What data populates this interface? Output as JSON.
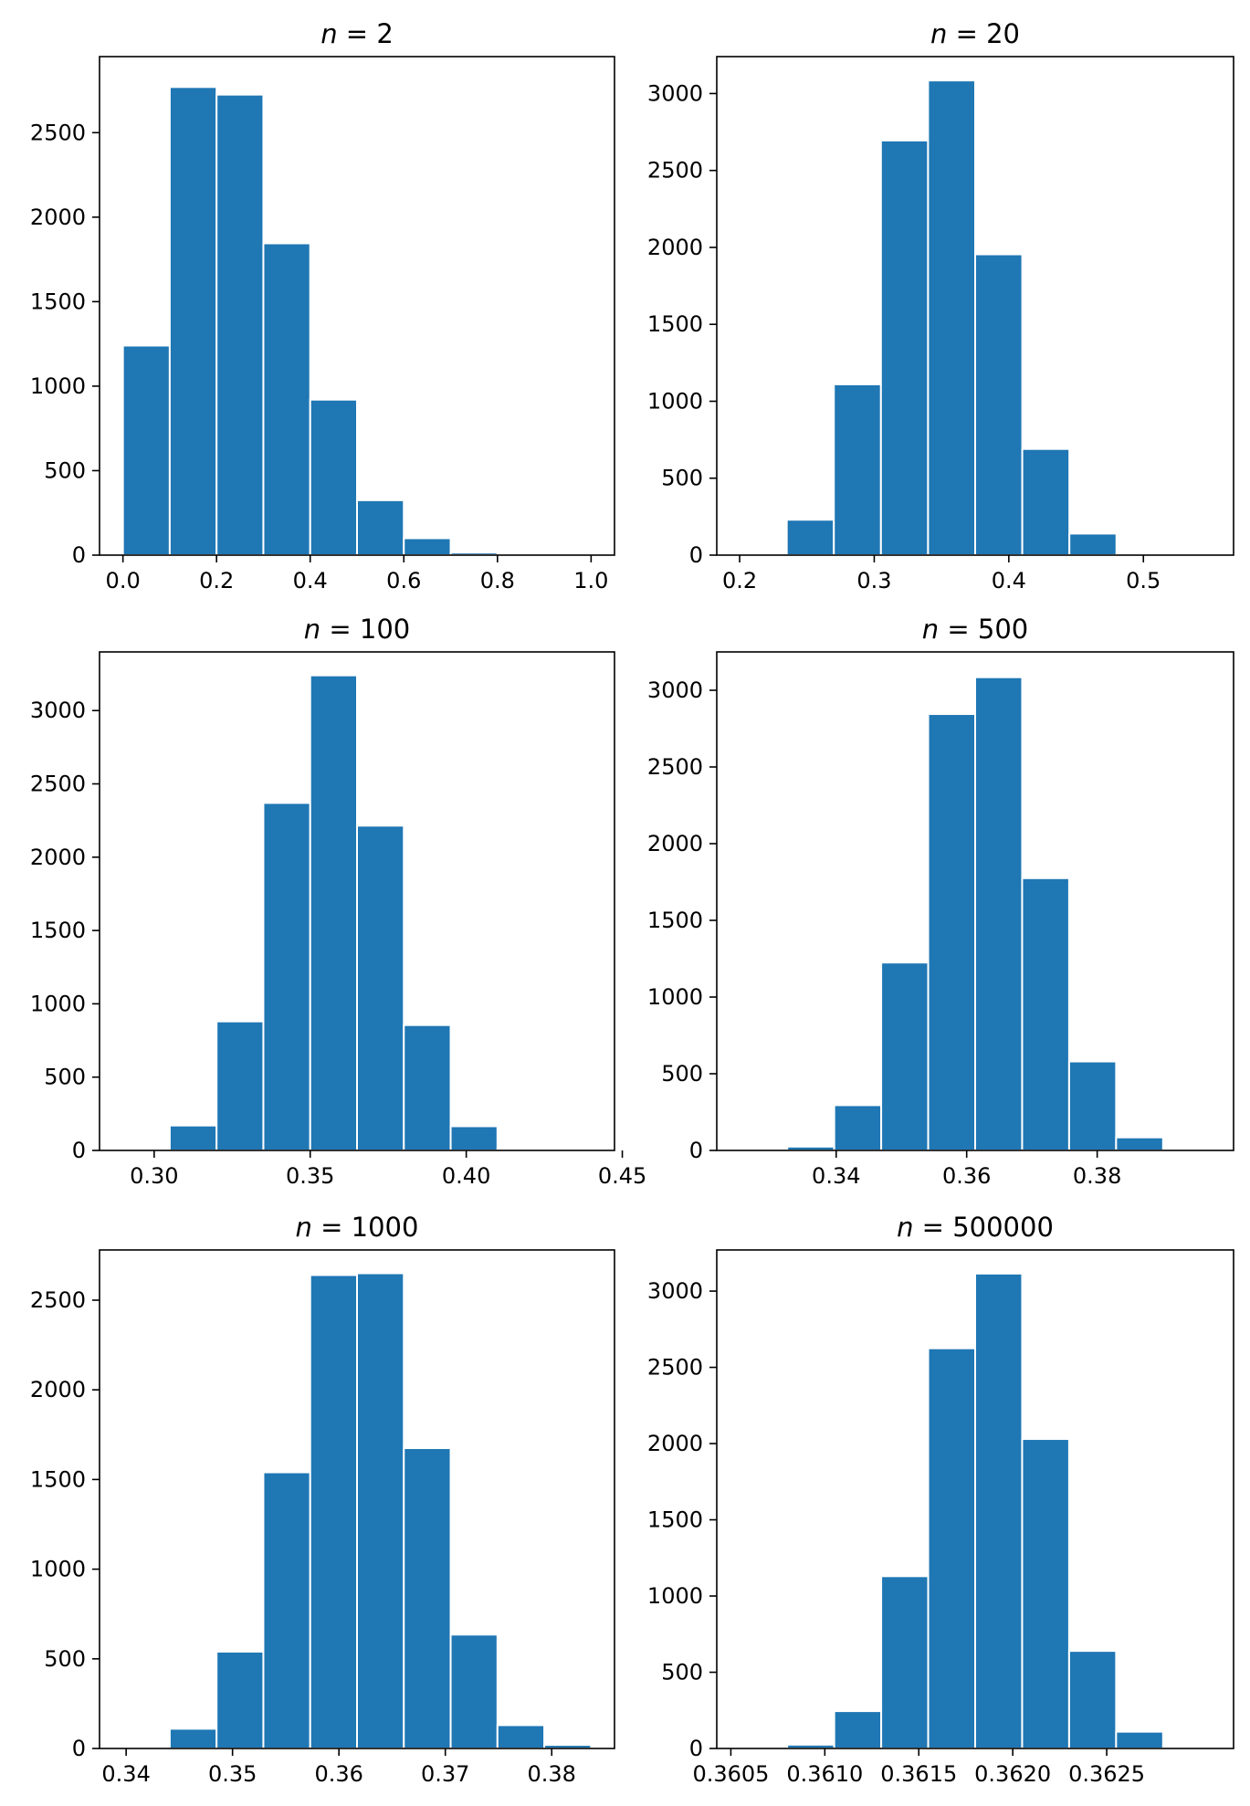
{
  "chart_data": [
    {
      "type": "bar",
      "title_var": "n",
      "title_eq": " = ",
      "title_value": "2",
      "bin_edges": [
        0.0,
        0.1,
        0.2,
        0.3,
        0.4,
        0.5,
        0.6,
        0.7,
        0.8,
        0.9,
        1.0
      ],
      "counts": [
        1240,
        2770,
        2725,
        1845,
        920,
        325,
        100,
        15,
        3,
        1
      ],
      "xlim": [
        -0.05,
        1.05
      ],
      "ylim": [
        0,
        2950
      ],
      "xticks": [
        0.0,
        0.2,
        0.4,
        0.6,
        0.8,
        1.0
      ],
      "xtick_labels": [
        "0.0",
        "0.2",
        "0.4",
        "0.6",
        "0.8",
        "1.0"
      ],
      "yticks": [
        0,
        500,
        1000,
        1500,
        2000,
        2500
      ],
      "ytick_labels": [
        "0",
        "500",
        "1000",
        "1500",
        "2000",
        "2500"
      ]
    },
    {
      "type": "bar",
      "title_var": "n",
      "title_eq": " = ",
      "title_value": "20",
      "bin_edges": [
        0.2,
        0.235,
        0.27,
        0.305,
        0.34,
        0.375,
        0.41,
        0.445,
        0.48,
        0.515,
        0.55
      ],
      "counts": [
        5,
        230,
        1110,
        2695,
        3085,
        1955,
        690,
        140,
        10,
        1
      ],
      "xlim": [
        0.183,
        0.567
      ],
      "ylim": [
        0,
        3240
      ],
      "xticks": [
        0.2,
        0.3,
        0.4,
        0.5
      ],
      "xtick_labels": [
        "0.2",
        "0.3",
        "0.4",
        "0.5"
      ],
      "yticks": [
        0,
        500,
        1000,
        1500,
        2000,
        2500,
        3000
      ],
      "ytick_labels": [
        "0",
        "500",
        "1000",
        "1500",
        "2000",
        "2500",
        "3000"
      ]
    },
    {
      "type": "bar",
      "title_var": "n",
      "title_eq": " = ",
      "title_value": "100",
      "bin_edges": [
        0.29,
        0.305,
        0.32,
        0.335,
        0.35,
        0.365,
        0.38,
        0.395,
        0.41,
        0.425,
        0.44
      ],
      "counts": [
        5,
        170,
        880,
        2370,
        3240,
        2215,
        855,
        165,
        10,
        2
      ],
      "xlim": [
        0.2825,
        0.4475
      ],
      "ylim": [
        0,
        3400
      ],
      "xticks": [
        0.3,
        0.35,
        0.4,
        0.45
      ],
      "xtick_labels": [
        "0.30",
        "0.35",
        "0.40",
        "0.45"
      ],
      "yticks": [
        0,
        500,
        1000,
        1500,
        2000,
        2500,
        3000
      ],
      "ytick_labels": [
        "0",
        "500",
        "1000",
        "1500",
        "2000",
        "2500",
        "3000"
      ]
    },
    {
      "type": "bar",
      "title_var": "n",
      "title_eq": " = ",
      "title_value": "500",
      "bin_edges": [
        0.3253,
        0.3325,
        0.3397,
        0.3469,
        0.3541,
        0.3613,
        0.3685,
        0.3757,
        0.3829,
        0.3901,
        0.3973
      ],
      "counts": [
        3,
        25,
        295,
        1225,
        2845,
        3085,
        1775,
        580,
        85,
        2
      ],
      "xlim": [
        0.3217,
        0.4009
      ],
      "ylim": [
        0,
        3250
      ],
      "xticks": [
        0.34,
        0.36,
        0.38
      ],
      "xtick_labels": [
        "0.34",
        "0.36",
        "0.38"
      ],
      "yticks": [
        0,
        500,
        1000,
        1500,
        2000,
        2500,
        3000
      ],
      "ytick_labels": [
        "0",
        "500",
        "1000",
        "1500",
        "2000",
        "2500",
        "3000"
      ]
    },
    {
      "type": "bar",
      "title_var": "n",
      "title_eq": " = ",
      "title_value": "1000",
      "bin_edges": [
        0.3397,
        0.3441,
        0.3485,
        0.3529,
        0.3573,
        0.3617,
        0.3661,
        0.3705,
        0.3749,
        0.3793,
        0.3837
      ],
      "counts": [
        10,
        110,
        540,
        1540,
        2640,
        2650,
        1675,
        635,
        130,
        20
      ],
      "xlim": [
        0.3375,
        0.3859
      ],
      "ylim": [
        0,
        2780
      ],
      "xticks": [
        0.34,
        0.35,
        0.36,
        0.37,
        0.38
      ],
      "xtick_labels": [
        "0.34",
        "0.35",
        "0.36",
        "0.37",
        "0.38"
      ],
      "yticks": [
        0,
        500,
        1000,
        1500,
        2000,
        2500
      ],
      "ytick_labels": [
        "0",
        "500",
        "1000",
        "1500",
        "2000",
        "2500"
      ]
    },
    {
      "type": "bar",
      "title_var": "n",
      "title_eq": " = ",
      "title_value": "500000",
      "bin_edges": [
        0.36055,
        0.3608,
        0.36105,
        0.3613,
        0.36155,
        0.3618,
        0.36205,
        0.3623,
        0.36255,
        0.3628,
        0.36305
      ],
      "counts": [
        2,
        25,
        245,
        1130,
        2625,
        3115,
        2030,
        640,
        110,
        5
      ],
      "xlim": [
        0.360425,
        0.363175
      ],
      "ylim": [
        0,
        3270
      ],
      "xticks": [
        0.3605,
        0.361,
        0.3615,
        0.362,
        0.3625
      ],
      "xtick_labels": [
        "0.3605",
        "0.3610",
        "0.3615",
        "0.3620",
        "0.3625"
      ],
      "yticks": [
        0,
        500,
        1000,
        1500,
        2000,
        2500,
        3000
      ],
      "ytick_labels": [
        "0",
        "500",
        "1000",
        "1500",
        "2000",
        "2500",
        "3000"
      ]
    }
  ],
  "colors": {
    "bar_fill": "#1f77b4",
    "bar_edge": "#ffffff",
    "axes": "#000000",
    "background": "#ffffff"
  }
}
